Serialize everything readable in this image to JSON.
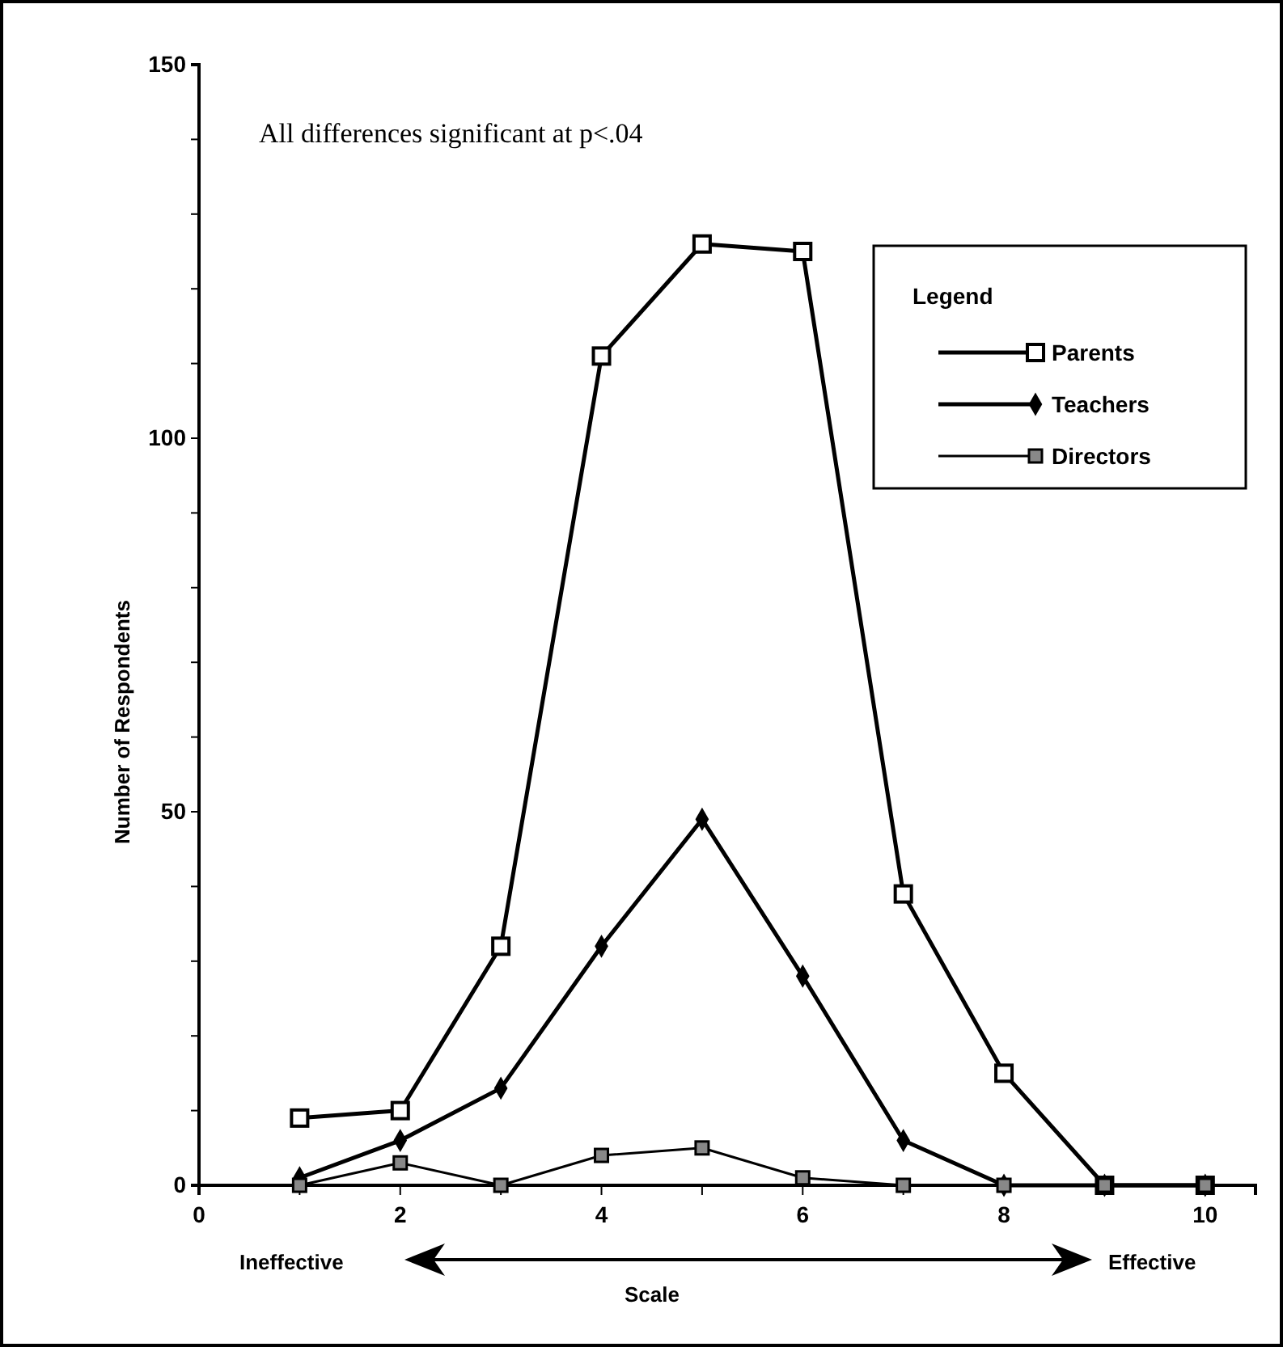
{
  "chart_data": {
    "type": "line",
    "xlabel": "Scale",
    "ylabel": "Number of Respondents",
    "legend_title": "Legend",
    "legend": "top right",
    "annotations": [
      "All differences significant at p<.04",
      "Ineffective",
      "Effective"
    ],
    "x": [
      1,
      2,
      3,
      4,
      5,
      6,
      7,
      8,
      9,
      10
    ],
    "xlim": [
      0,
      10.5
    ],
    "xticks": [
      0,
      {
        "value": 1,
        "label": null
      },
      2,
      {
        "value": 3,
        "label": null
      },
      4,
      {
        "value": 5,
        "label": null
      },
      6,
      {
        "value": 7,
        "label": null
      },
      8,
      {
        "value": 9,
        "label": null
      },
      10
    ],
    "ylim": [
      0,
      150
    ],
    "yticks": [
      0,
      {
        "value": 10,
        "label": null
      },
      {
        "value": 20,
        "label": null
      },
      {
        "value": 30,
        "label": null
      },
      {
        "value": 40,
        "label": null
      },
      50,
      {
        "value": 60,
        "label": null
      },
      {
        "value": 70,
        "label": null
      },
      {
        "value": 80,
        "label": null
      },
      {
        "value": 90,
        "label": null
      },
      100,
      {
        "value": 110,
        "label": null
      },
      {
        "value": 120,
        "label": null
      },
      {
        "value": 130,
        "label": null
      },
      {
        "value": 140,
        "label": null
      },
      150
    ],
    "grid": false,
    "series": [
      {
        "name": "Parents",
        "color": "#000000",
        "marker": "square",
        "values": [
          9,
          10,
          32,
          111,
          126,
          125,
          39,
          15,
          0,
          0
        ]
      },
      {
        "name": "Teachers",
        "color": "#000000",
        "marker": "diamond",
        "values": [
          1,
          6,
          13,
          32,
          49,
          28,
          6,
          0,
          0,
          0
        ]
      },
      {
        "name": "Directors",
        "color": "#000000",
        "marker": "square",
        "values": [
          0,
          3,
          0,
          4,
          5,
          1,
          0,
          0,
          0,
          0
        ]
      }
    ]
  }
}
